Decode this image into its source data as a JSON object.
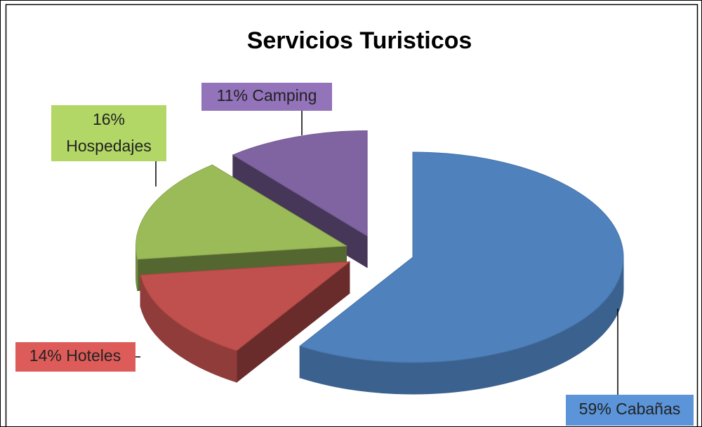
{
  "chart_data": {
    "type": "pie",
    "title": "Servicios Turisticos",
    "categories": [
      "Cabañas",
      "Hoteles",
      "Hospedajes",
      "Camping"
    ],
    "values": [
      59,
      14,
      16,
      11
    ],
    "value_labels": [
      "59%",
      "14%",
      "16%",
      "11%"
    ],
    "colors": [
      "#4f81bd",
      "#c0504d",
      "#9bbb59",
      "#8064a2"
    ]
  }
}
